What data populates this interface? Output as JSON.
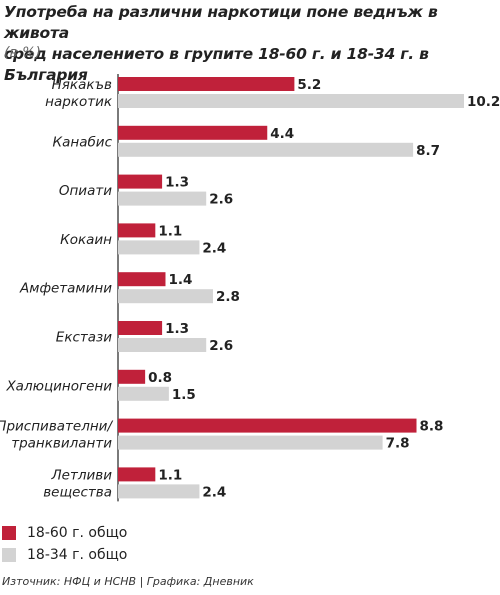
{
  "chart_data": {
    "type": "bar",
    "orientation": "horizontal",
    "title_lines": [
      "Употреба на различни наркотици поне веднъж в живота",
      "сред населението в групите 18-60 г. и 18-34 г. в България"
    ],
    "unit": "(в %)",
    "categories": [
      [
        "Някакъв",
        "наркотик"
      ],
      [
        "Канабис"
      ],
      [
        "Опиати"
      ],
      [
        "Кокаин"
      ],
      [
        "Амфетамини"
      ],
      [
        "Екстази"
      ],
      [
        "Халюциногени"
      ],
      [
        "Приспивателни/",
        "транквиланти"
      ],
      [
        "Летливи",
        "вещества"
      ]
    ],
    "series": [
      {
        "name": "18-60 г. общо",
        "color": "#c0213a",
        "values": [
          5.2,
          4.4,
          1.3,
          1.1,
          1.4,
          1.3,
          0.8,
          8.8,
          1.1
        ]
      },
      {
        "name": "18-34 г. общо",
        "color": "#d3d3d3",
        "values": [
          10.2,
          8.7,
          2.6,
          2.4,
          2.8,
          2.6,
          1.5,
          7.8,
          2.4
        ]
      }
    ],
    "xlim": [
      0,
      10.2
    ],
    "grid": false,
    "legend_position": "bottom-left"
  },
  "source": "Източник: НФЦ и НСНВ | Графика: Дневник"
}
